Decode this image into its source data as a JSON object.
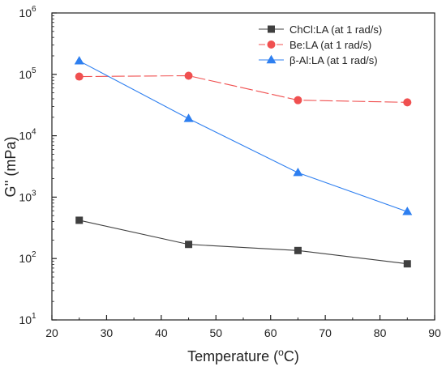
{
  "chart_data": {
    "type": "line",
    "title": "",
    "xlabel": "Temperature (",
    "xlabel_sup": "o",
    "xlabel_tail": "C)",
    "ylabel": "G'' (mPa)",
    "y_scale": "log",
    "xlim": [
      20,
      90
    ],
    "ylim": [
      10,
      1000000
    ],
    "x_ticks": [
      20,
      30,
      40,
      50,
      60,
      70,
      80,
      90
    ],
    "y_ticks": [
      {
        "value": 10,
        "base": "10",
        "exp": "1"
      },
      {
        "value": 100,
        "base": "10",
        "exp": "2"
      },
      {
        "value": 1000,
        "base": "10",
        "exp": "3"
      },
      {
        "value": 10000,
        "base": "10",
        "exp": "4"
      },
      {
        "value": 100000,
        "base": "10",
        "exp": "5"
      },
      {
        "value": 1000000,
        "base": "10",
        "exp": "6"
      }
    ],
    "grid": false,
    "legend_position": "top-right",
    "x": [
      25,
      45,
      65,
      85
    ],
    "series": [
      {
        "name": "ChCl:LA (at 1 rad/s)",
        "values": [
          420,
          170,
          135,
          82
        ],
        "color": "#3f3f3f",
        "marker": "square",
        "dash": "solid"
      },
      {
        "name": "Be:LA (at 1 rad/s)",
        "values": [
          92000,
          95000,
          38000,
          35000
        ],
        "color": "#f05050",
        "marker": "circle",
        "dash": "dashed"
      },
      {
        "name": "β-Al:LA (at 1 rad/s)",
        "values": [
          165000,
          19000,
          2500,
          580
        ],
        "color": "#2e7ff0",
        "marker": "triangle",
        "dash": "solid"
      }
    ]
  }
}
